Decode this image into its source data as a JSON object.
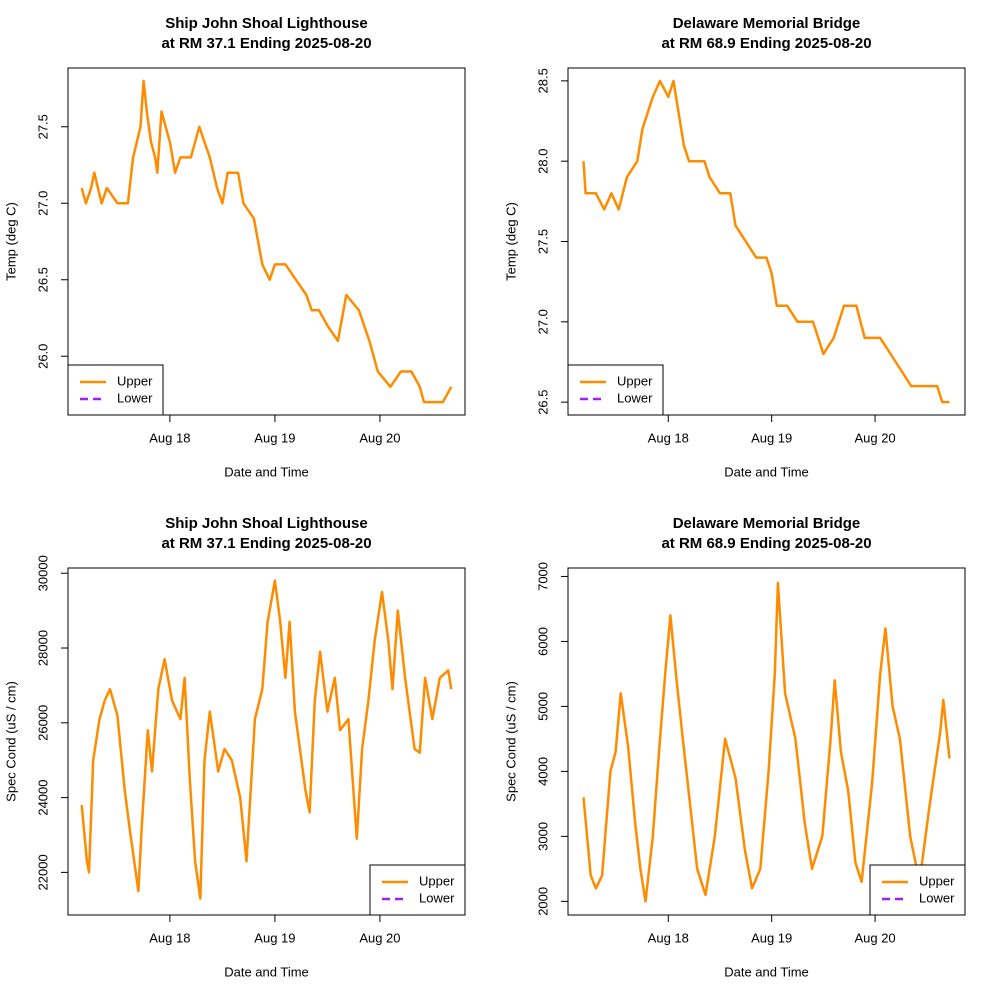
{
  "chart_data": [
    {
      "type": "line",
      "title": "Ship John Shoal Lighthouse",
      "subtitle": "at RM 37.1 Ending 2025-08-20",
      "x_label": "Date and Time",
      "y_label": "Temp (deg C)",
      "legend": "bottomleft",
      "xlim": [
        17.03,
        20.81
      ],
      "xticks": [
        {
          "value": 18,
          "label": "Aug 18"
        },
        {
          "value": 19,
          "label": "Aug 19"
        },
        {
          "value": 20,
          "label": "Aug 20"
        }
      ],
      "ylim": [
        25.616,
        27.884
      ],
      "yticks": [
        {
          "value": 26,
          "label": "26.0"
        },
        26.5,
        {
          "value": 27,
          "label": "27.0"
        },
        27.5
      ],
      "x": [
        17.16,
        17.2,
        17.25,
        17.28,
        17.35,
        17.4,
        17.5,
        17.6,
        17.65,
        17.72,
        17.75,
        17.78,
        17.82,
        17.86,
        17.88,
        17.92,
        17.96,
        18.0,
        18.05,
        18.1,
        18.2,
        18.28,
        18.33,
        18.38,
        18.45,
        18.5,
        18.55,
        18.65,
        18.7,
        18.8,
        18.88,
        18.95,
        19.0,
        19.1,
        19.2,
        19.3,
        19.35,
        19.42,
        19.5,
        19.6,
        19.68,
        19.8,
        19.9,
        19.98,
        20.1,
        20.2,
        20.3,
        20.38,
        20.42,
        20.6,
        20.68
      ],
      "series": [
        {
          "name": "Upper",
          "color": "#ff8c00",
          "values": [
            27.1,
            27.0,
            27.1,
            27.2,
            27.0,
            27.1,
            27.0,
            27.0,
            27.3,
            27.5,
            27.8,
            27.6,
            27.4,
            27.3,
            27.2,
            27.6,
            27.5,
            27.4,
            27.2,
            27.3,
            27.3,
            27.5,
            27.4,
            27.3,
            27.1,
            27.0,
            27.2,
            27.2,
            27.0,
            26.9,
            26.6,
            26.5,
            26.6,
            26.6,
            26.5,
            26.4,
            26.3,
            26.3,
            26.2,
            26.1,
            26.4,
            26.3,
            26.1,
            25.9,
            25.8,
            25.9,
            25.9,
            25.8,
            25.7,
            25.7,
            25.8
          ]
        },
        {
          "name": "Lower",
          "color": "#a020f0",
          "dashed": true,
          "values": [
            null,
            null,
            null,
            null,
            null,
            null,
            null,
            null,
            null,
            null,
            null,
            null,
            null,
            null,
            null,
            null,
            null,
            null,
            null,
            null,
            null,
            null,
            null,
            null,
            null,
            null,
            null,
            null,
            null,
            null,
            null,
            null,
            null,
            null,
            null,
            null,
            null,
            null,
            null,
            null,
            null,
            null,
            null,
            null,
            null,
            null,
            null,
            null,
            null,
            null,
            null
          ]
        }
      ]
    },
    {
      "type": "line",
      "title": "Delaware Memorial Bridge",
      "subtitle": "at RM 68.9 Ending 2025-08-20",
      "x_label": "Date and Time",
      "y_label": "Temp (deg C)",
      "legend": "bottomleft",
      "xlim": [
        17.03,
        20.87
      ],
      "xticks": [
        {
          "value": 18,
          "label": "Aug 18"
        },
        {
          "value": 19,
          "label": "Aug 19"
        },
        {
          "value": 20,
          "label": "Aug 20"
        }
      ],
      "ylim": [
        26.42,
        28.58
      ],
      "yticks": [
        26.5,
        {
          "value": 27,
          "label": "27.0"
        },
        27.5,
        {
          "value": 28,
          "label": "28.0"
        },
        28.5
      ],
      "x": [
        17.18,
        17.2,
        17.3,
        17.38,
        17.45,
        17.52,
        17.6,
        17.7,
        17.75,
        17.8,
        17.85,
        17.92,
        18.0,
        18.05,
        18.1,
        18.15,
        18.2,
        18.35,
        18.4,
        18.5,
        18.6,
        18.65,
        18.75,
        18.85,
        18.95,
        19.0,
        19.05,
        19.15,
        19.25,
        19.4,
        19.5,
        19.6,
        19.7,
        19.82,
        19.9,
        20.05,
        20.15,
        20.25,
        20.35,
        20.5,
        20.6,
        20.65,
        20.72
      ],
      "series": [
        {
          "name": "Upper",
          "color": "#ff8c00",
          "values": [
            28.0,
            27.8,
            27.8,
            27.7,
            27.8,
            27.7,
            27.9,
            28.0,
            28.2,
            28.3,
            28.4,
            28.5,
            28.4,
            28.5,
            28.3,
            28.1,
            28.0,
            28.0,
            27.9,
            27.8,
            27.8,
            27.6,
            27.5,
            27.4,
            27.4,
            27.3,
            27.1,
            27.1,
            27.0,
            27.0,
            26.8,
            26.9,
            27.1,
            27.1,
            26.9,
            26.9,
            26.8,
            26.7,
            26.6,
            26.6,
            26.6,
            26.5,
            26.5
          ]
        },
        {
          "name": "Lower",
          "color": "#a020f0",
          "dashed": true,
          "values": [
            null,
            null,
            null,
            null,
            null,
            null,
            null,
            null,
            null,
            null,
            null,
            null,
            null,
            null,
            null,
            null,
            null,
            null,
            null,
            null,
            null,
            null,
            null,
            null,
            null,
            null,
            null,
            null,
            null,
            null,
            null,
            null,
            null,
            null,
            null,
            null,
            null,
            null,
            null,
            null,
            null,
            null,
            null
          ]
        }
      ]
    },
    {
      "type": "line",
      "title": "Ship John Shoal Lighthouse",
      "subtitle": "at RM 37.1 Ending 2025-08-20",
      "x_label": "Date and Time",
      "y_label": "Spec Cond (uS / cm)",
      "legend": "bottomright",
      "xlim": [
        17.03,
        20.81
      ],
      "xticks": [
        {
          "value": 18,
          "label": "Aug 18"
        },
        {
          "value": 19,
          "label": "Aug 19"
        },
        {
          "value": 20,
          "label": "Aug 20"
        }
      ],
      "ylim": [
        20860,
        30140
      ],
      "yticks": [
        22000,
        24000,
        26000,
        28000,
        30000
      ],
      "x": [
        17.16,
        17.21,
        17.23,
        17.27,
        17.33,
        17.38,
        17.43,
        17.5,
        17.57,
        17.62,
        17.7,
        17.73,
        17.79,
        17.83,
        17.89,
        17.95,
        18.02,
        18.1,
        18.14,
        18.19,
        18.24,
        18.29,
        18.33,
        18.38,
        18.46,
        18.52,
        18.59,
        18.67,
        18.73,
        18.81,
        18.88,
        18.93,
        19.0,
        19.05,
        19.1,
        19.14,
        19.19,
        19.29,
        19.33,
        19.38,
        19.43,
        19.5,
        19.57,
        19.62,
        19.7,
        19.78,
        19.83,
        19.89,
        19.95,
        20.02,
        20.08,
        20.12,
        20.17,
        20.24,
        20.33,
        20.38,
        20.43,
        20.5,
        20.57,
        20.65,
        20.68
      ],
      "series": [
        {
          "name": "Upper",
          "color": "#ff8c00",
          "values": [
            23800,
            22300,
            22000,
            25000,
            26100,
            26600,
            26900,
            26200,
            24200,
            23100,
            21500,
            23100,
            25800,
            24700,
            26900,
            27700,
            26600,
            26100,
            27200,
            24500,
            22300,
            21300,
            25000,
            26300,
            24700,
            25300,
            25000,
            24000,
            22300,
            26100,
            26900,
            28700,
            29800,
            28700,
            27200,
            28700,
            26300,
            24200,
            23600,
            26600,
            27900,
            26300,
            27200,
            25800,
            26100,
            22900,
            25300,
            26600,
            28200,
            29500,
            28200,
            26900,
            29000,
            27200,
            25300,
            25200,
            27200,
            26100,
            27200,
            27400,
            26900
          ]
        },
        {
          "name": "Lower",
          "color": "#a020f0",
          "dashed": true,
          "values": [
            null,
            null,
            null,
            null,
            null,
            null,
            null,
            null,
            null,
            null,
            null,
            null,
            null,
            null,
            null,
            null,
            null,
            null,
            null,
            null,
            null,
            null,
            null,
            null,
            null,
            null,
            null,
            null,
            null,
            null,
            null,
            null,
            null,
            null,
            null,
            null,
            null,
            null,
            null,
            null,
            null,
            null,
            null,
            null,
            null,
            null,
            null,
            null,
            null,
            null,
            null,
            null,
            null,
            null,
            null,
            null,
            null,
            null,
            null,
            null,
            null
          ]
        }
      ]
    },
    {
      "type": "line",
      "title": "Delaware Memorial Bridge",
      "subtitle": "at RM 68.9 Ending 2025-08-20",
      "x_label": "Date and Time",
      "y_label": "Spec Cond (uS / cm)",
      "legend": "bottomright",
      "xlim": [
        17.03,
        20.87
      ],
      "xticks": [
        {
          "value": 18,
          "label": "Aug 18"
        },
        {
          "value": 19,
          "label": "Aug 19"
        },
        {
          "value": 20,
          "label": "Aug 20"
        }
      ],
      "ylim": [
        1790,
        7130
      ],
      "yticks": [
        2000,
        3000,
        4000,
        5000,
        6000,
        7000
      ],
      "x": [
        17.18,
        17.25,
        17.3,
        17.36,
        17.44,
        17.49,
        17.54,
        17.61,
        17.68,
        17.73,
        17.78,
        17.85,
        17.92,
        17.97,
        18.02,
        18.08,
        18.14,
        18.21,
        18.28,
        18.36,
        18.45,
        18.55,
        18.65,
        18.74,
        18.81,
        18.89,
        18.97,
        19.03,
        19.06,
        19.13,
        19.23,
        19.32,
        19.39,
        19.49,
        19.57,
        19.61,
        19.67,
        19.74,
        19.81,
        19.87,
        19.97,
        20.05,
        20.1,
        20.17,
        20.24,
        20.34,
        20.43,
        20.53,
        20.63,
        20.66,
        20.72
      ],
      "series": [
        {
          "name": "Upper",
          "color": "#ff8c00",
          "values": [
            3600,
            2400,
            2200,
            2400,
            4000,
            4300,
            5200,
            4400,
            3200,
            2500,
            2000,
            3000,
            4500,
            5500,
            6400,
            5400,
            4500,
            3500,
            2500,
            2100,
            3000,
            4500,
            3900,
            2800,
            2200,
            2500,
            4000,
            5500,
            6900,
            5200,
            4500,
            3200,
            2500,
            3000,
            4500,
            5400,
            4300,
            3700,
            2600,
            2300,
            3800,
            5500,
            6200,
            5000,
            4500,
            3000,
            2300,
            3500,
            4600,
            5100,
            4200
          ]
        },
        {
          "name": "Lower",
          "color": "#a020f0",
          "dashed": true,
          "values": [
            null,
            null,
            null,
            null,
            null,
            null,
            null,
            null,
            null,
            null,
            null,
            null,
            null,
            null,
            null,
            null,
            null,
            null,
            null,
            null,
            null,
            null,
            null,
            null,
            null,
            null,
            null,
            null,
            null,
            null,
            null,
            null,
            null,
            null,
            null,
            null,
            null,
            null,
            null,
            null,
            null,
            null,
            null,
            null,
            null,
            null,
            null,
            null,
            null,
            null,
            null
          ]
        }
      ]
    }
  ]
}
